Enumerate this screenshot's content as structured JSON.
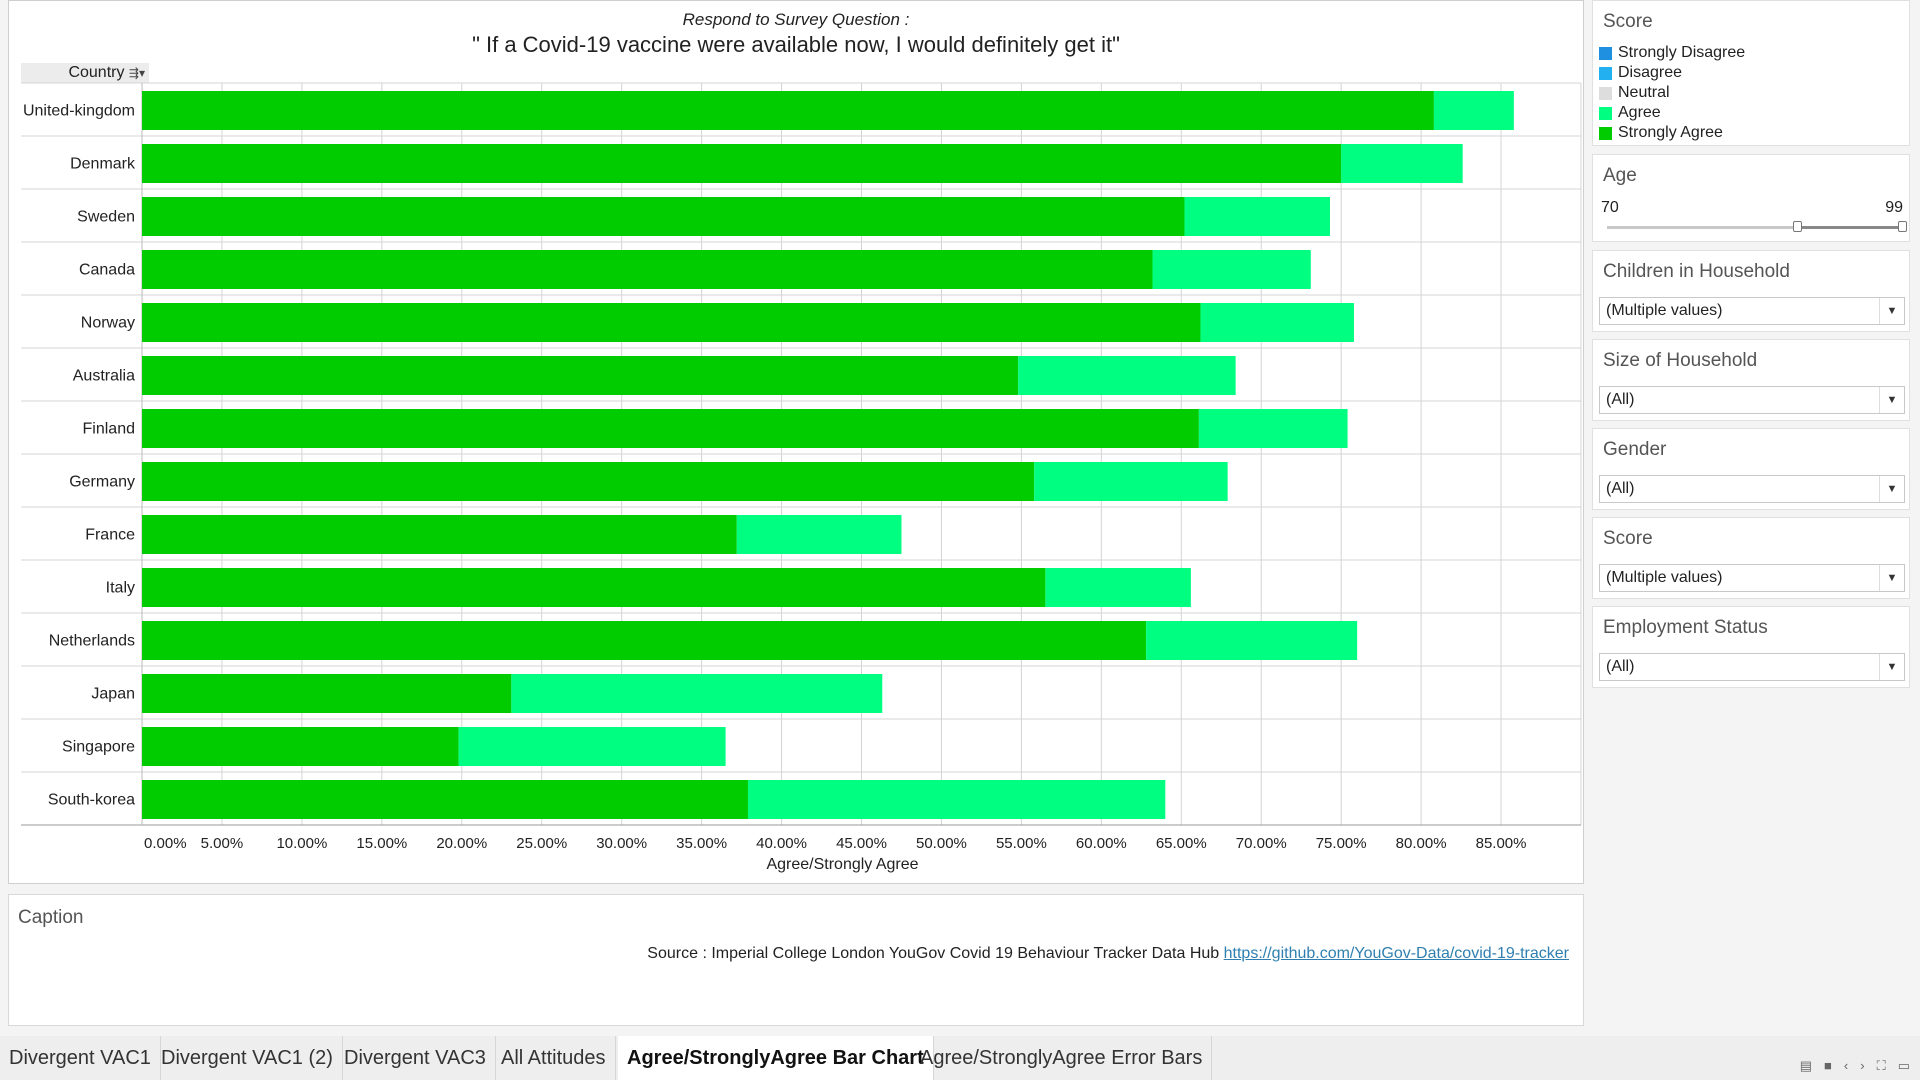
{
  "chart": {
    "subtitle": "Respond to Survey Question :",
    "title": "\" If a Covid-19 vaccine were available now, I would definitely get it\"",
    "row_header": "Country",
    "row_header_icons": "⇶▾"
  },
  "chart_data": {
    "type": "bar",
    "orientation": "horizontal",
    "stacked": true,
    "xlabel": "Agree/Strongly Agree",
    "xlim": [
      0,
      90
    ],
    "x_ticks": [
      "0.00%",
      "5.00%",
      "10.00%",
      "15.00%",
      "20.00%",
      "25.00%",
      "30.00%",
      "35.00%",
      "40.00%",
      "45.00%",
      "50.00%",
      "55.00%",
      "60.00%",
      "65.00%",
      "70.00%",
      "75.00%",
      "80.00%",
      "85.00%"
    ],
    "grid": true,
    "categories": [
      "United-kingdom",
      "Denmark",
      "Sweden",
      "Canada",
      "Norway",
      "Australia",
      "Finland",
      "Germany",
      "France",
      "Italy",
      "Netherlands",
      "Japan",
      "Singapore",
      "South-korea"
    ],
    "series": [
      {
        "name": "Strongly Agree",
        "color": "#00cc00",
        "values": [
          80.8,
          75.0,
          65.2,
          63.2,
          66.2,
          54.8,
          66.1,
          55.8,
          37.2,
          56.5,
          62.8,
          23.1,
          19.8,
          37.9
        ]
      },
      {
        "name": "Agree",
        "color": "#00ff80",
        "values": [
          5.0,
          7.6,
          9.1,
          9.9,
          9.6,
          13.6,
          9.3,
          12.1,
          10.3,
          9.1,
          13.2,
          23.2,
          16.7,
          26.1
        ]
      }
    ]
  },
  "filters": {
    "score_legend": {
      "title": "Score",
      "items": [
        {
          "label": "Strongly Disagree",
          "color": "#1f8fe0"
        },
        {
          "label": "Disagree",
          "color": "#22b0f0"
        },
        {
          "label": "Neutral",
          "color": "#dddddd"
        },
        {
          "label": "Agree",
          "color": "#00ff80"
        },
        {
          "label": "Strongly Agree",
          "color": "#00cc00"
        }
      ]
    },
    "age": {
      "title": "Age",
      "min_label": "70",
      "max_label": "99",
      "low": 70,
      "high": 99,
      "range_min": 18,
      "range_max": 99
    },
    "children": {
      "title": "Children in Household",
      "value": "(Multiple values)"
    },
    "size": {
      "title": "Size of Household",
      "value": "(All)"
    },
    "gender": {
      "title": "Gender",
      "value": "(All)"
    },
    "score": {
      "title": "Score",
      "value": "(Multiple values)"
    },
    "employment": {
      "title": "Employment Status",
      "value": "(All)"
    }
  },
  "caption": {
    "title": "Caption",
    "source_text": "Source : Imperial College London YouGov Covid 19 Behaviour Tracker Data Hub",
    "link_text": "https://github.com/YouGov-Data/covid-19-tracker"
  },
  "tabs": [
    {
      "label": "Divergent VAC1",
      "active": false
    },
    {
      "label": "Divergent VAC1 (2)",
      "active": false
    },
    {
      "label": "Divergent VAC3",
      "active": false
    },
    {
      "label": "All Attitudes",
      "active": false
    },
    {
      "label": "Agree/StronglyAgree Bar Chart",
      "active": true
    },
    {
      "label": "Agree/StronglyAgree Error Bars",
      "active": false
    }
  ],
  "nav_icons": [
    "grid-view-icon",
    "single-view-icon",
    "prev-icon",
    "next-icon",
    "fullscreen-icon",
    "present-icon"
  ]
}
